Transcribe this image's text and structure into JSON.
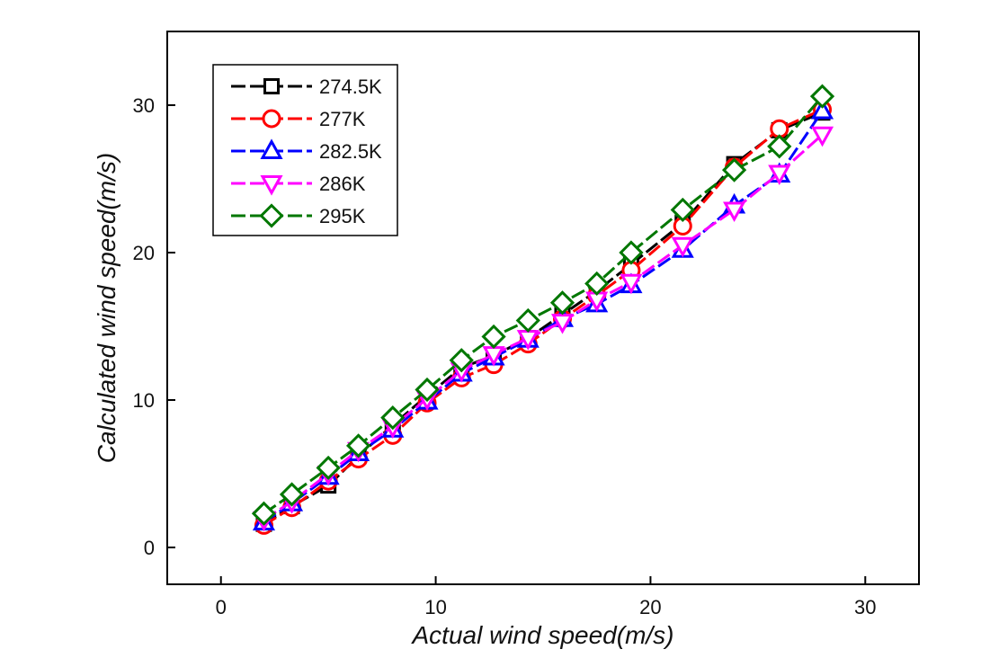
{
  "chart_data": {
    "type": "line",
    "title": "",
    "xlabel": "Actual wind speed(m/s)",
    "ylabel": "Calculated wind speed(m/s)",
    "xlim": [
      -2.5,
      32.5
    ],
    "ylim": [
      -2.5,
      35
    ],
    "x_ticks": [
      0,
      10,
      20,
      30
    ],
    "y_ticks": [
      0,
      10,
      20,
      30
    ],
    "x_tick_labels": [
      "0",
      "10",
      "20",
      "30"
    ],
    "y_tick_labels": [
      "0",
      "10",
      "20",
      "30"
    ],
    "grid": false,
    "legend_position": "top-left",
    "x": [
      2.0,
      3.3,
      5.0,
      6.4,
      8.0,
      9.6,
      11.2,
      12.7,
      14.3,
      15.9,
      17.5,
      19.1,
      21.5,
      23.9,
      26.0,
      28.0
    ],
    "series": [
      {
        "name": "274.5K",
        "color": "#000000",
        "marker": "square",
        "dashed": true,
        "values": [
          1.6,
          2.8,
          4.2,
          6.2,
          8.3,
          10.3,
          12.2,
          13.0,
          14.2,
          15.8,
          17.4,
          19.2,
          22.0,
          26.0,
          28.3,
          29.5
        ]
      },
      {
        "name": "277K",
        "color": "#ff0000",
        "marker": "circle",
        "dashed": true,
        "values": [
          1.5,
          2.7,
          4.5,
          6.0,
          7.6,
          9.8,
          11.5,
          12.4,
          13.8,
          15.5,
          17.1,
          18.8,
          21.8,
          25.8,
          28.4,
          29.7
        ]
      },
      {
        "name": "282.5K",
        "color": "#0000ff",
        "marker": "triangle-up",
        "dashed": true,
        "values": [
          1.7,
          3.0,
          4.8,
          6.4,
          8.0,
          9.9,
          11.8,
          12.9,
          14.1,
          15.5,
          16.5,
          17.8,
          20.2,
          23.2,
          25.3,
          29.6
        ]
      },
      {
        "name": "286K",
        "color": "#ff00ff",
        "marker": "triangle-down",
        "dashed": true,
        "values": [
          1.9,
          3.1,
          5.0,
          6.6,
          8.2,
          10.1,
          12.0,
          13.1,
          14.2,
          15.3,
          16.8,
          18.0,
          20.5,
          22.9,
          25.4,
          28.0
        ]
      },
      {
        "name": "295K",
        "color": "#007700",
        "marker": "diamond",
        "dashed": true,
        "values": [
          2.3,
          3.6,
          5.4,
          6.9,
          8.8,
          10.7,
          12.7,
          14.3,
          15.4,
          16.6,
          17.9,
          20.0,
          22.9,
          25.6,
          27.2,
          30.6
        ]
      }
    ]
  }
}
